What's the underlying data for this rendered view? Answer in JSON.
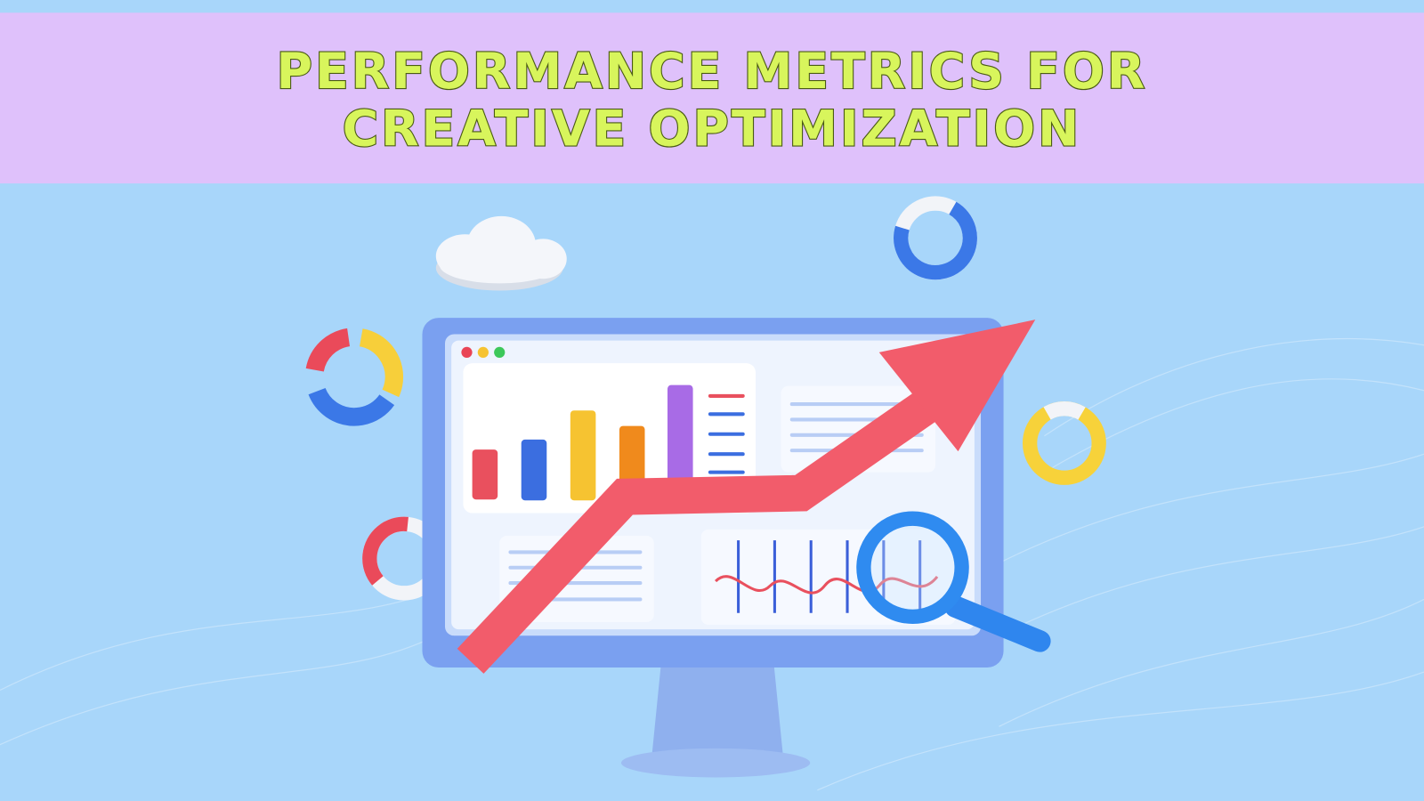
{
  "header": {
    "lines": [
      "PERFORMANCE METRICS FOR",
      "CREATIVE OPTIMIZATION"
    ]
  }
}
